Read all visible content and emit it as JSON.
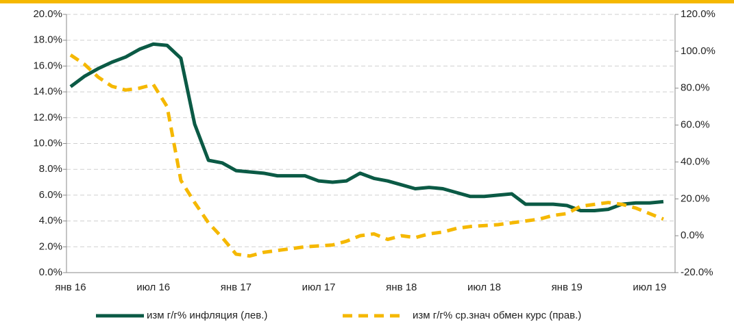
{
  "chart_data": {
    "type": "line",
    "categories": [
      "янв 16",
      null,
      null,
      null,
      null,
      null,
      "июл 16",
      null,
      null,
      null,
      null,
      null,
      "янв 17",
      null,
      null,
      null,
      null,
      null,
      "июл 17",
      null,
      null,
      null,
      null,
      null,
      "янв 18",
      null,
      null,
      null,
      null,
      null,
      "июл 18",
      null,
      null,
      null,
      null,
      null,
      "янв 19",
      null,
      null,
      null,
      null,
      null,
      "июл 19",
      null
    ],
    "series": [
      {
        "name": "изм г/г% инфляция (лев.)",
        "color": "#0b5a45",
        "axis": "y",
        "values": [
          14.4,
          15.2,
          15.8,
          16.3,
          16.7,
          17.3,
          17.7,
          17.6,
          16.6,
          11.5,
          8.7,
          8.5,
          7.9,
          7.8,
          7.7,
          7.5,
          7.5,
          7.5,
          7.1,
          7.0,
          7.1,
          7.7,
          7.3,
          7.1,
          6.8,
          6.5,
          6.6,
          6.5,
          6.2,
          5.9,
          5.9,
          6.0,
          6.1,
          5.3,
          5.3,
          5.3,
          5.2,
          4.8,
          4.8,
          4.9,
          5.3,
          5.4,
          5.4,
          5.5
        ]
      },
      {
        "name": "изм г/г% ср.знач обмен курс (прав.)",
        "color": "#f5b800",
        "axis": "y2",
        "dashed": true,
        "values": [
          98,
          93,
          86,
          81,
          79,
          80,
          82,
          70,
          30,
          18,
          7,
          -1,
          -10,
          -11,
          -9,
          -8,
          -7,
          -6,
          -5.5,
          -5,
          -3,
          0,
          1,
          -2,
          0,
          -1,
          1,
          2,
          4,
          5,
          5.5,
          6,
          7,
          8,
          9,
          11,
          12,
          16,
          17,
          18,
          17,
          15,
          12,
          9
        ]
      }
    ],
    "ylim": [
      0,
      20
    ],
    "yticks": [
      {
        "value": 0,
        "label": "0.0%"
      },
      {
        "value": 2,
        "label": "2.0%"
      },
      {
        "value": 4,
        "label": "4.0%"
      },
      {
        "value": 6,
        "label": "6.0%"
      },
      {
        "value": 8,
        "label": "8.0%"
      },
      {
        "value": 10,
        "label": "10.0%"
      },
      {
        "value": 12,
        "label": "12.0%"
      },
      {
        "value": 14,
        "label": "14.0%"
      },
      {
        "value": 16,
        "label": "16.0%"
      },
      {
        "value": 18,
        "label": "18.0%"
      },
      {
        "value": 20,
        "label": "20.0%"
      }
    ],
    "y2lim": [
      -20,
      120
    ],
    "y2ticks": [
      {
        "value": -20,
        "label": "-20.0%"
      },
      {
        "value": 0,
        "label": "0.0%"
      },
      {
        "value": 20,
        "label": "20.0%"
      },
      {
        "value": 40,
        "label": "40.0%"
      },
      {
        "value": 60,
        "label": "60.0%"
      },
      {
        "value": 80,
        "label": "80.0%"
      },
      {
        "value": 100,
        "label": "100.0%"
      },
      {
        "value": 120,
        "label": "120.0%"
      }
    ],
    "grid": true,
    "legend": "bottom"
  }
}
